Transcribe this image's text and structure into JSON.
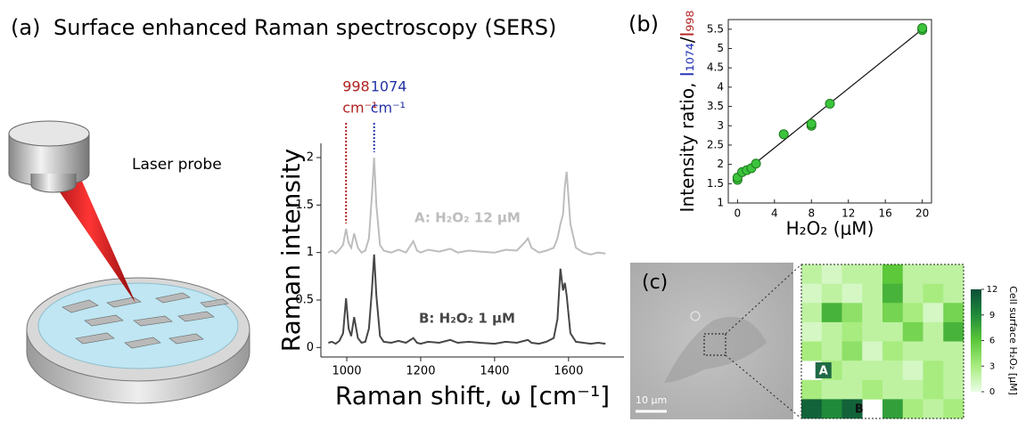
{
  "illustration": {
    "label": "Laser probe"
  },
  "chart_data": [
    {
      "type": "line",
      "panel": "(a)",
      "title": "Surface enhanced Raman spectroscopy (SERS)",
      "x_label": "Raman shift, ω [cm⁻¹]",
      "y_label": "Raman intensity",
      "x": [
        950,
        960,
        970,
        980,
        990,
        998,
        1005,
        1012,
        1020,
        1030,
        1040,
        1050,
        1060,
        1068,
        1074,
        1080,
        1090,
        1100,
        1120,
        1140,
        1160,
        1180,
        1190,
        1200,
        1220,
        1250,
        1280,
        1300,
        1330,
        1360,
        1400,
        1430,
        1460,
        1480,
        1490,
        1500,
        1520,
        1540,
        1560,
        1570,
        1578,
        1585,
        1590,
        1595,
        1605,
        1620,
        1640,
        1660,
        1680,
        1700
      ],
      "series": [
        {
          "name": "A: H₂O₂ 12 μM",
          "color": "#bdbdbd",
          "values": [
            1.0,
            1.02,
            0.99,
            1.03,
            1.08,
            1.25,
            1.1,
            1.05,
            1.2,
            1.05,
            1.0,
            1.02,
            1.15,
            1.6,
            2.0,
            1.5,
            1.08,
            1.02,
            1.0,
            1.03,
            1.0,
            1.12,
            1.02,
            1.0,
            1.03,
            1.01,
            1.04,
            1.0,
            1.02,
            1.01,
            1.0,
            1.03,
            1.02,
            1.1,
            1.15,
            1.05,
            1.0,
            1.02,
            1.05,
            1.15,
            1.3,
            1.4,
            1.7,
            1.85,
            1.3,
            1.05,
            1.0,
            0.98,
            1.0,
            0.99
          ]
        },
        {
          "name": "B: H₂O₂ 1 μM",
          "color": "#474747",
          "values": [
            0.05,
            0.06,
            0.04,
            0.07,
            0.15,
            0.52,
            0.2,
            0.12,
            0.32,
            0.1,
            0.05,
            0.06,
            0.2,
            0.6,
            0.98,
            0.55,
            0.12,
            0.06,
            0.05,
            0.07,
            0.05,
            0.1,
            0.05,
            0.04,
            0.06,
            0.05,
            0.08,
            0.05,
            0.06,
            0.05,
            0.04,
            0.06,
            0.05,
            0.07,
            0.08,
            0.05,
            0.04,
            0.06,
            0.1,
            0.3,
            0.83,
            0.6,
            0.68,
            0.55,
            0.15,
            0.06,
            0.05,
            0.04,
            0.05,
            0.04
          ]
        }
      ],
      "xlim": [
        930,
        1750
      ],
      "ylim": [
        -0.1,
        2.15
      ],
      "xticks": [
        1000,
        1200,
        1400,
        1600
      ],
      "yticks": [
        0,
        0.5,
        1,
        1.5,
        2
      ],
      "annotations": [
        {
          "x": 998,
          "unit": "cm⁻¹",
          "color": "#b22222"
        },
        {
          "x": 1074,
          "unit": "cm⁻¹",
          "color": "#2433a6"
        }
      ]
    },
    {
      "type": "scatter",
      "panel": "(b)",
      "x_label": "H₂O₂ (μM)",
      "y_label": "Intensity ratio, ",
      "y_label_ratio": [
        {
          "text": "I₁₀₇₄",
          "color": "#2433b5"
        },
        {
          "text": "/",
          "color": "#000000"
        },
        {
          "text": "I₉₉₈",
          "color": "#b52424"
        }
      ],
      "x": [
        0,
        0,
        0.5,
        1,
        1.5,
        2,
        5,
        8,
        8,
        10,
        20,
        20
      ],
      "values": [
        1.6,
        1.66,
        1.8,
        1.85,
        1.9,
        2.02,
        2.78,
        3.0,
        3.05,
        3.57,
        5.48,
        5.53
      ],
      "color": "#3cc43c",
      "fit": {
        "x": [
          0,
          20
        ],
        "values": [
          1.66,
          5.5
        ]
      },
      "xlim": [
        -1,
        21
      ],
      "ylim": [
        1,
        5.75
      ],
      "xticks": [
        0,
        4,
        8,
        12,
        16,
        20
      ],
      "yticks": [
        1,
        1.5,
        2,
        2.5,
        3,
        3.5,
        4,
        4.5,
        5,
        5.5
      ]
    },
    {
      "type": "heatmap",
      "panel": "(c)",
      "scale_bar": "10 μm",
      "values": [
        [
          2,
          1,
          2,
          2,
          6,
          2,
          2,
          2
        ],
        [
          1,
          2,
          1,
          2,
          7,
          2,
          3,
          2
        ],
        [
          2,
          7,
          4,
          2,
          5,
          3,
          1,
          5
        ],
        [
          1,
          2,
          3,
          2,
          2,
          5,
          2,
          7
        ],
        [
          3,
          2,
          4,
          1,
          3,
          2,
          2,
          2
        ],
        [
          null,
          3,
          2,
          2,
          2,
          1,
          3,
          2
        ],
        [
          3,
          2,
          2,
          3,
          2,
          2,
          3,
          2
        ],
        [
          11,
          9,
          11,
          null,
          8,
          3,
          2,
          3
        ]
      ],
      "colors": [
        "#eafde6",
        "#a8ec7f",
        "#5cc83a",
        "#1f8a3a",
        "#0b4f38"
      ],
      "clim": [
        0,
        12
      ],
      "cticks": [
        0,
        3,
        6,
        9,
        12
      ],
      "colorbar_label": "Cell surface H₂O₂ [μM]",
      "annotations": [
        "A",
        "B"
      ]
    }
  ]
}
